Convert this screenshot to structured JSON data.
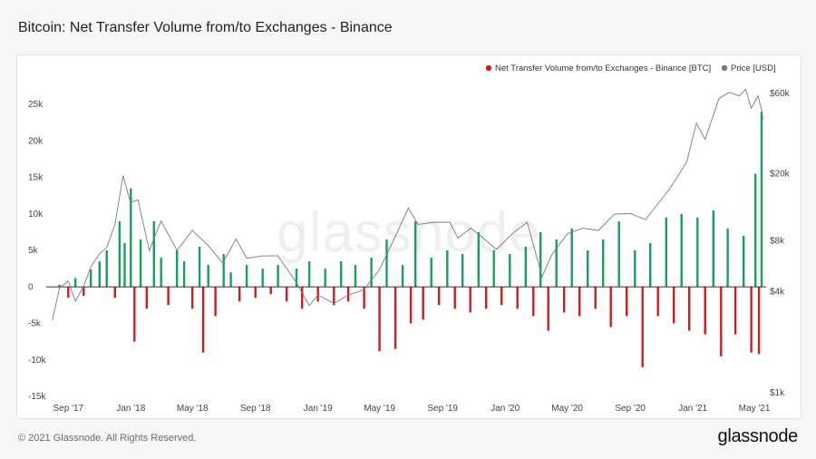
{
  "title": "Bitcoin: Net Transfer Volume from/to Exchanges - Binance",
  "footer": "© 2021 Glassnode. All Rights Reserved.",
  "brand": "glassnode",
  "watermark": "glassnode",
  "chart_data": {
    "type": "bar",
    "legend_position": "top-right",
    "grid": false,
    "series": [
      {
        "name": "Net Transfer Volume from/to Exchanges - Binance [BTC]",
        "type": "bar",
        "axis": "left",
        "color_positive": "#1a9f5c",
        "color_negative": "#d51a1a",
        "points": [
          [
            "2017-08-15",
            300
          ],
          [
            "2017-09-01",
            -1500
          ],
          [
            "2017-09-15",
            1200
          ],
          [
            "2017-10-01",
            -1200
          ],
          [
            "2017-10-15",
            2400
          ],
          [
            "2017-11-01",
            3500
          ],
          [
            "2017-11-15",
            5000
          ],
          [
            "2017-12-01",
            -1500
          ],
          [
            "2017-12-10",
            9000
          ],
          [
            "2017-12-20",
            6000
          ],
          [
            "2018-01-01",
            13500
          ],
          [
            "2018-01-08",
            -7500
          ],
          [
            "2018-01-20",
            6500
          ],
          [
            "2018-02-01",
            -3000
          ],
          [
            "2018-02-15",
            9000
          ],
          [
            "2018-03-01",
            4000
          ],
          [
            "2018-03-15",
            -2500
          ],
          [
            "2018-04-01",
            5000
          ],
          [
            "2018-04-15",
            3500
          ],
          [
            "2018-05-01",
            -3000
          ],
          [
            "2018-05-15",
            5500
          ],
          [
            "2018-05-22",
            -9000
          ],
          [
            "2018-06-01",
            3000
          ],
          [
            "2018-06-15",
            -4000
          ],
          [
            "2018-07-01",
            4500
          ],
          [
            "2018-07-15",
            2000
          ],
          [
            "2018-08-01",
            -2000
          ],
          [
            "2018-08-15",
            3000
          ],
          [
            "2018-09-01",
            -1500
          ],
          [
            "2018-09-15",
            2500
          ],
          [
            "2018-10-01",
            -1000
          ],
          [
            "2018-10-15",
            3000
          ],
          [
            "2018-11-01",
            -2000
          ],
          [
            "2018-11-20",
            2500
          ],
          [
            "2018-12-01",
            -3000
          ],
          [
            "2018-12-15",
            3500
          ],
          [
            "2019-01-01",
            -2000
          ],
          [
            "2019-01-15",
            2500
          ],
          [
            "2019-02-01",
            -2500
          ],
          [
            "2019-02-15",
            3500
          ],
          [
            "2019-03-01",
            -2000
          ],
          [
            "2019-03-15",
            3000
          ],
          [
            "2019-04-01",
            -3000
          ],
          [
            "2019-04-15",
            4000
          ],
          [
            "2019-05-01",
            -8800
          ],
          [
            "2019-05-15",
            6500
          ],
          [
            "2019-06-01",
            -8500
          ],
          [
            "2019-06-15",
            3000
          ],
          [
            "2019-07-01",
            -5000
          ],
          [
            "2019-07-10",
            9000
          ],
          [
            "2019-07-25",
            -4500
          ],
          [
            "2019-08-10",
            4000
          ],
          [
            "2019-08-25",
            -2500
          ],
          [
            "2019-09-10",
            5000
          ],
          [
            "2019-09-25",
            -3000
          ],
          [
            "2019-10-10",
            4500
          ],
          [
            "2019-10-25",
            -3500
          ],
          [
            "2019-11-10",
            7500
          ],
          [
            "2019-11-25",
            -3000
          ],
          [
            "2019-12-10",
            5000
          ],
          [
            "2019-12-25",
            -2500
          ],
          [
            "2020-01-10",
            4500
          ],
          [
            "2020-01-25",
            -3000
          ],
          [
            "2020-02-10",
            5500
          ],
          [
            "2020-02-25",
            -4000
          ],
          [
            "2020-03-10",
            7500
          ],
          [
            "2020-03-25",
            -6000
          ],
          [
            "2020-04-10",
            6500
          ],
          [
            "2020-04-25",
            -3500
          ],
          [
            "2020-05-10",
            8000
          ],
          [
            "2020-05-25",
            -4000
          ],
          [
            "2020-06-10",
            5000
          ],
          [
            "2020-06-25",
            -3000
          ],
          [
            "2020-07-10",
            6500
          ],
          [
            "2020-07-25",
            -5500
          ],
          [
            "2020-08-10",
            9000
          ],
          [
            "2020-08-25",
            -4000
          ],
          [
            "2020-09-10",
            5000
          ],
          [
            "2020-09-25",
            -11000
          ],
          [
            "2020-10-10",
            6000
          ],
          [
            "2020-10-25",
            -4000
          ],
          [
            "2020-11-10",
            9500
          ],
          [
            "2020-11-25",
            -5000
          ],
          [
            "2020-12-10",
            10000
          ],
          [
            "2020-12-25",
            -6000
          ],
          [
            "2021-01-10",
            9500
          ],
          [
            "2021-01-25",
            -6500
          ],
          [
            "2021-02-10",
            10500
          ],
          [
            "2021-02-25",
            -9500
          ],
          [
            "2021-03-10",
            8000
          ],
          [
            "2021-03-25",
            -6500
          ],
          [
            "2021-04-10",
            7000
          ],
          [
            "2021-04-25",
            -9000
          ],
          [
            "2021-05-03",
            15500
          ],
          [
            "2021-05-10",
            -9200
          ],
          [
            "2021-05-15",
            24000
          ]
        ]
      },
      {
        "name": "Price [USD]",
        "type": "line",
        "axis": "right",
        "scale": "log",
        "color": "#7a7a7a",
        "points": [
          [
            "2017-08-01",
            2700
          ],
          [
            "2017-08-15",
            4200
          ],
          [
            "2017-09-01",
            4600
          ],
          [
            "2017-09-15",
            3500
          ],
          [
            "2017-10-01",
            4300
          ],
          [
            "2017-10-15",
            5600
          ],
          [
            "2017-11-01",
            6700
          ],
          [
            "2017-11-15",
            7300
          ],
          [
            "2017-12-01",
            10000
          ],
          [
            "2017-12-17",
            19500
          ],
          [
            "2017-12-31",
            13500
          ],
          [
            "2018-01-15",
            14000
          ],
          [
            "2018-02-06",
            7000
          ],
          [
            "2018-03-01",
            10500
          ],
          [
            "2018-04-01",
            7000
          ],
          [
            "2018-05-01",
            9200
          ],
          [
            "2018-06-01",
            7500
          ],
          [
            "2018-06-29",
            5900
          ],
          [
            "2018-07-25",
            8200
          ],
          [
            "2018-08-15",
            6300
          ],
          [
            "2018-09-15",
            6500
          ],
          [
            "2018-10-15",
            6500
          ],
          [
            "2018-11-20",
            4500
          ],
          [
            "2018-12-15",
            3300
          ],
          [
            "2019-01-01",
            3800
          ],
          [
            "2019-02-01",
            3400
          ],
          [
            "2019-03-01",
            3800
          ],
          [
            "2019-04-01",
            4100
          ],
          [
            "2019-05-01",
            5400
          ],
          [
            "2019-06-01",
            8500
          ],
          [
            "2019-06-26",
            12500
          ],
          [
            "2019-07-15",
            10000
          ],
          [
            "2019-08-15",
            10300
          ],
          [
            "2019-09-15",
            10300
          ],
          [
            "2019-10-01",
            8300
          ],
          [
            "2019-10-26",
            9500
          ],
          [
            "2019-11-15",
            8500
          ],
          [
            "2019-12-15",
            7100
          ],
          [
            "2020-01-15",
            8800
          ],
          [
            "2020-02-13",
            10300
          ],
          [
            "2020-03-13",
            4900
          ],
          [
            "2020-04-01",
            6600
          ],
          [
            "2020-05-01",
            8800
          ],
          [
            "2020-06-01",
            9500
          ],
          [
            "2020-07-01",
            9200
          ],
          [
            "2020-08-01",
            11500
          ],
          [
            "2020-09-01",
            11600
          ],
          [
            "2020-10-01",
            10700
          ],
          [
            "2020-10-21",
            12800
          ],
          [
            "2020-11-15",
            16000
          ],
          [
            "2020-12-01",
            19000
          ],
          [
            "2020-12-20",
            23500
          ],
          [
            "2021-01-08",
            40000
          ],
          [
            "2021-01-25",
            32000
          ],
          [
            "2021-02-21",
            56000
          ],
          [
            "2021-03-13",
            61000
          ],
          [
            "2021-04-01",
            58000
          ],
          [
            "2021-04-14",
            63500
          ],
          [
            "2021-04-25",
            49000
          ],
          [
            "2021-05-08",
            58000
          ],
          [
            "2021-05-15",
            48000
          ],
          [
            "2021-05-18",
            42000
          ]
        ]
      }
    ],
    "x_axis": {
      "type": "date",
      "range": [
        "2017-07-20",
        "2021-05-31"
      ],
      "ticks": [
        {
          "date": "2017-09-01",
          "label": "Sep '17"
        },
        {
          "date": "2018-01-01",
          "label": "Jan '18"
        },
        {
          "date": "2018-05-01",
          "label": "May '18"
        },
        {
          "date": "2018-09-01",
          "label": "Sep '18"
        },
        {
          "date": "2019-01-01",
          "label": "Jan '19"
        },
        {
          "date": "2019-05-01",
          "label": "May '19"
        },
        {
          "date": "2019-09-01",
          "label": "Sep '19"
        },
        {
          "date": "2020-01-01",
          "label": "Jan '20"
        },
        {
          "date": "2020-05-01",
          "label": "May '20"
        },
        {
          "date": "2020-09-01",
          "label": "Sep '20"
        },
        {
          "date": "2021-01-01",
          "label": "Jan '21"
        },
        {
          "date": "2021-05-01",
          "label": "May '21"
        }
      ]
    },
    "y_axis_left": {
      "range": [
        -15000,
        27000
      ],
      "ticks": [
        {
          "value": 25000,
          "label": "25k"
        },
        {
          "value": 20000,
          "label": "20k"
        },
        {
          "value": 15000,
          "label": "15k"
        },
        {
          "value": 10000,
          "label": "10k"
        },
        {
          "value": 5000,
          "label": "5k"
        },
        {
          "value": 0,
          "label": "0"
        },
        {
          "value": -5000,
          "label": "-5k"
        },
        {
          "value": -10000,
          "label": "-10k"
        },
        {
          "value": -15000,
          "label": "-15k"
        }
      ]
    },
    "y_axis_right": {
      "scale": "log",
      "range": [
        1000,
        60000
      ],
      "ticks": [
        {
          "value": 60000,
          "label": "$60k"
        },
        {
          "value": 20000,
          "label": "$20k"
        },
        {
          "value": 8000,
          "label": "$8k"
        },
        {
          "value": 4000,
          "label": "$4k"
        },
        {
          "value": 1000,
          "label": "$1k"
        }
      ]
    }
  }
}
